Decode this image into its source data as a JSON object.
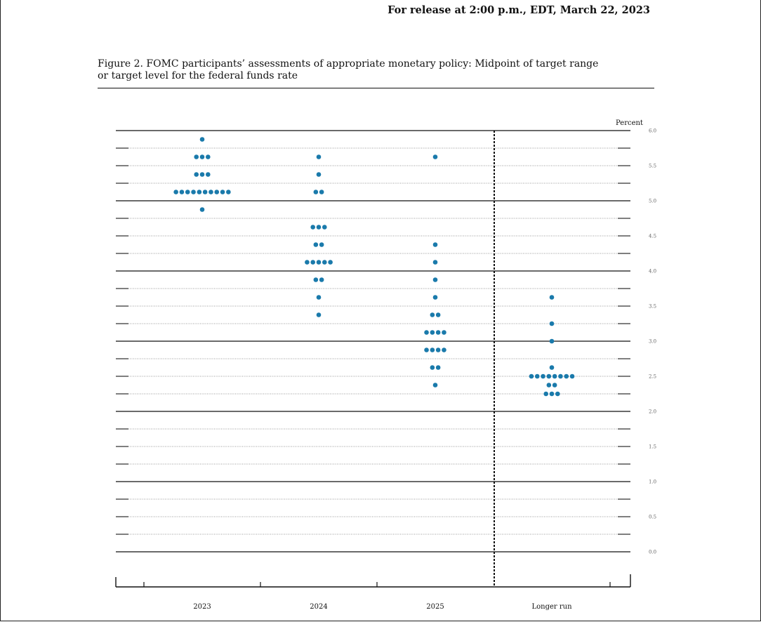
{
  "header": {
    "release": "For release at 2:00 p.m., EDT, March 22, 2023"
  },
  "figure": {
    "title_line1": "Figure 2.  FOMC participants’ assessments of appropriate monetary policy:  Midpoint of target range",
    "title_line2": "or target level for the federal funds rate"
  },
  "chart_data": {
    "type": "scatter",
    "ylabel": "Percent",
    "ylim": [
      0.0,
      6.0
    ],
    "yticks": [
      "6.0",
      "5.5",
      "5.0",
      "4.5",
      "4.0",
      "3.5",
      "3.0",
      "2.5",
      "2.0",
      "1.5",
      "1.0",
      "0.5",
      "0.0"
    ],
    "categories": [
      "2023",
      "2024",
      "2025",
      "Longer run"
    ],
    "dot_color": "#1a7aab",
    "series": [
      {
        "category": "2023",
        "dots": [
          {
            "y": 5.875,
            "n": 1
          },
          {
            "y": 5.625,
            "n": 3
          },
          {
            "y": 5.375,
            "n": 3
          },
          {
            "y": 5.125,
            "n": 10
          },
          {
            "y": 4.875,
            "n": 1
          }
        ]
      },
      {
        "category": "2024",
        "dots": [
          {
            "y": 5.625,
            "n": 1
          },
          {
            "y": 5.375,
            "n": 1
          },
          {
            "y": 5.125,
            "n": 2
          },
          {
            "y": 4.625,
            "n": 3
          },
          {
            "y": 4.375,
            "n": 2
          },
          {
            "y": 4.125,
            "n": 5
          },
          {
            "y": 3.875,
            "n": 2
          },
          {
            "y": 3.625,
            "n": 1
          },
          {
            "y": 3.375,
            "n": 1
          }
        ]
      },
      {
        "category": "2025",
        "dots": [
          {
            "y": 5.625,
            "n": 1
          },
          {
            "y": 4.375,
            "n": 1
          },
          {
            "y": 4.125,
            "n": 1
          },
          {
            "y": 3.875,
            "n": 1
          },
          {
            "y": 3.625,
            "n": 1
          },
          {
            "y": 3.375,
            "n": 2
          },
          {
            "y": 3.125,
            "n": 4
          },
          {
            "y": 2.875,
            "n": 4
          },
          {
            "y": 2.625,
            "n": 2
          },
          {
            "y": 2.375,
            "n": 1
          }
        ]
      },
      {
        "category": "Longer run",
        "dots": [
          {
            "y": 3.625,
            "n": 1
          },
          {
            "y": 3.25,
            "n": 1
          },
          {
            "y": 3.0,
            "n": 1
          },
          {
            "y": 2.625,
            "n": 1
          },
          {
            "y": 2.5,
            "n": 8
          },
          {
            "y": 2.375,
            "n": 2
          },
          {
            "y": 2.25,
            "n": 3
          }
        ]
      }
    ],
    "grid": true,
    "divider_before": "Longer run"
  }
}
